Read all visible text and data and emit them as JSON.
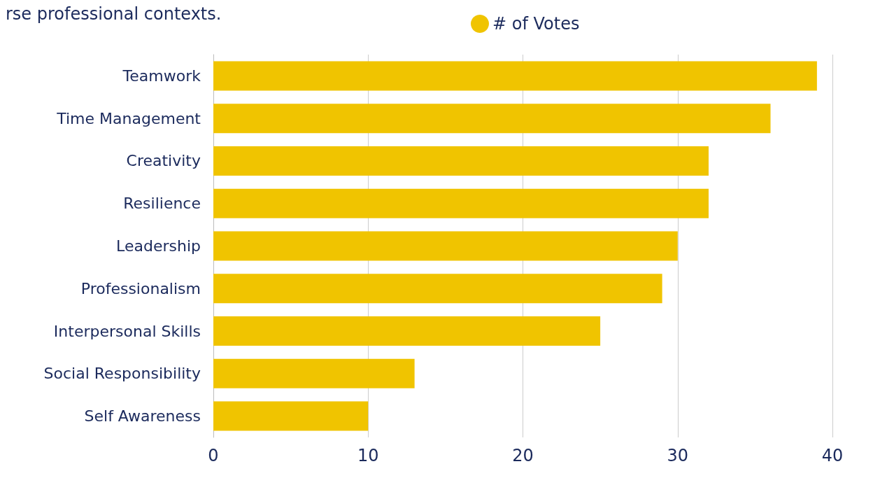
{
  "chart_data": {
    "type": "bar",
    "orientation": "horizontal",
    "annotations": [
      "rse professional contexts."
    ],
    "categories": [
      "Teamwork",
      "Time Management",
      "Creativity",
      "Resilience",
      "Leadership",
      "Professionalism",
      "Interpersonal Skills",
      "Social Responsibility",
      "Self Awareness"
    ],
    "series": [
      {
        "name": "# of Votes",
        "color": "#f0c400",
        "values": [
          39,
          36,
          32,
          32,
          30,
          29,
          25,
          13,
          10
        ]
      }
    ],
    "xlim": [
      0,
      40
    ],
    "xticks": [
      0,
      10,
      20,
      30,
      40
    ],
    "grid": "x",
    "legend": "top",
    "marker": "circle"
  }
}
